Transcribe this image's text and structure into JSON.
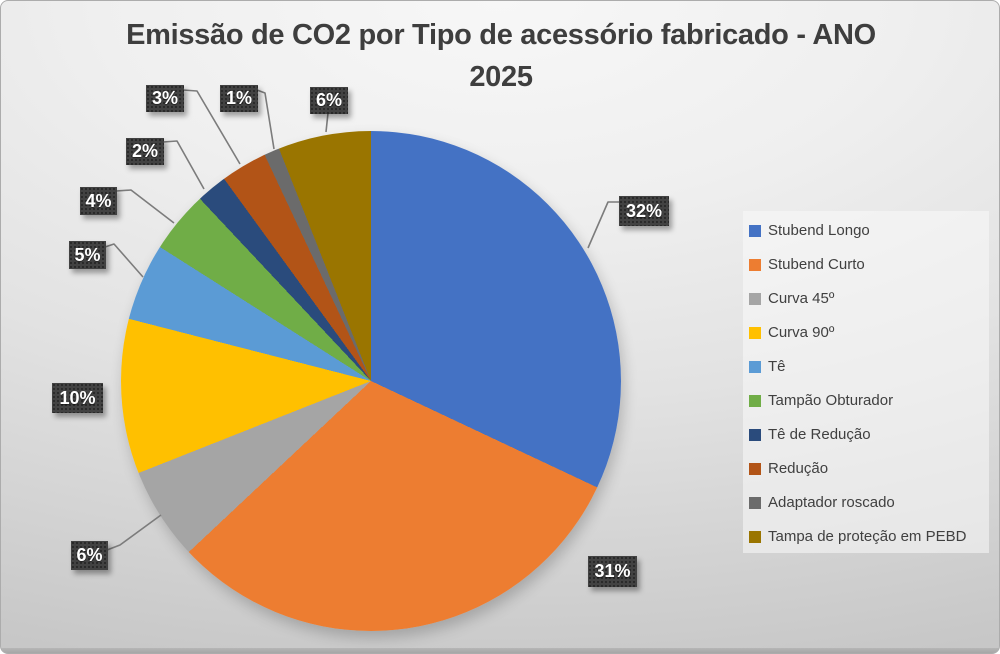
{
  "title": "Emissão de CO2 por Tipo de acessório fabricado - ANO 2025",
  "chart_data": {
    "type": "pie",
    "title": "Emissão de CO2 por Tipo de acessório fabricado - ANO 2025",
    "categories": [
      "Stubend Longo",
      "Stubend Curto",
      "Curva 45º",
      "Curva 90º",
      "Tê",
      "Tampão Obturador",
      "Tê de Redução",
      "Redução",
      "Adaptador roscado",
      "Tampa de proteção em PEBD"
    ],
    "values": [
      32,
      31,
      6,
      10,
      5,
      4,
      2,
      3,
      1,
      6
    ],
    "unit": "%",
    "data_labels": [
      "32%",
      "31%",
      "6%",
      "10%",
      "5%",
      "4%",
      "2%",
      "3%",
      "1%",
      "6%"
    ],
    "colors": [
      "#4472C4",
      "#ED7D31",
      "#A5A5A5",
      "#FFC000",
      "#5B9BD5",
      "#70AD47",
      "#2A4B7C",
      "#B25417",
      "#6B6B6B",
      "#9A7500"
    ],
    "legend_position": "right",
    "start_angle_deg": 0,
    "direction": "clockwise",
    "label_style": "dark-callout-boxes-with-leader-lines",
    "background": "light-gray-gradient-card"
  }
}
